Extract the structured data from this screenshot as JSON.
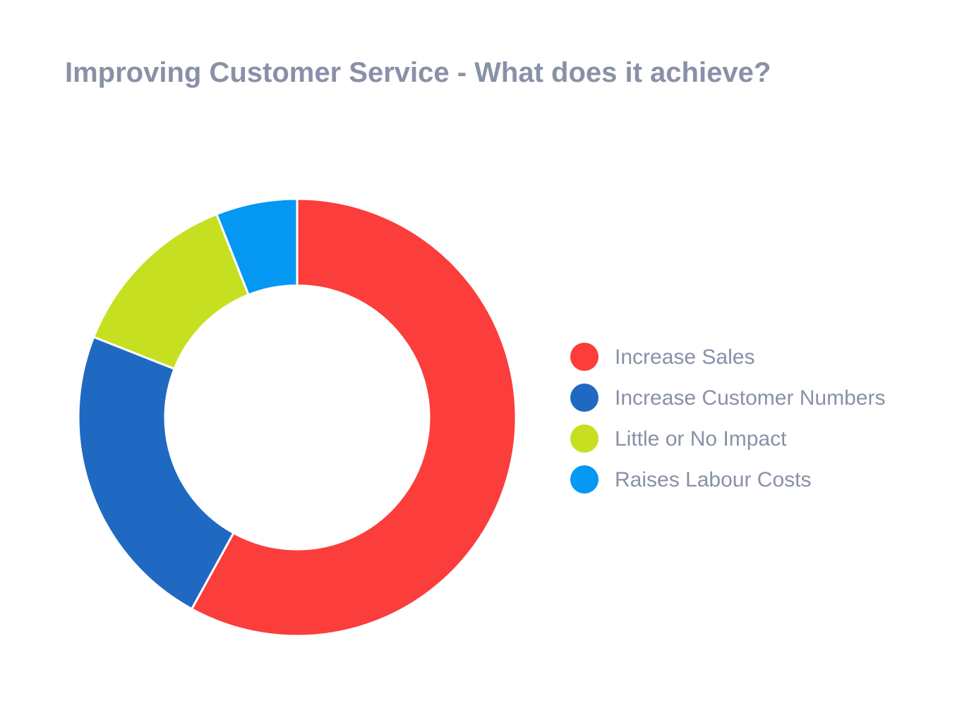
{
  "chart_data": {
    "type": "pie",
    "title": "Improving Customer Service - What does it achieve?",
    "categories": [
      "Increase Sales",
      "Increase Customer Numbers",
      "Little or No Impact",
      "Raises Labour Costs"
    ],
    "values": [
      58,
      23,
      13,
      6
    ],
    "colors": [
      "#fb3d3b",
      "#2069c2",
      "#c6e021",
      "#0498f3"
    ]
  }
}
